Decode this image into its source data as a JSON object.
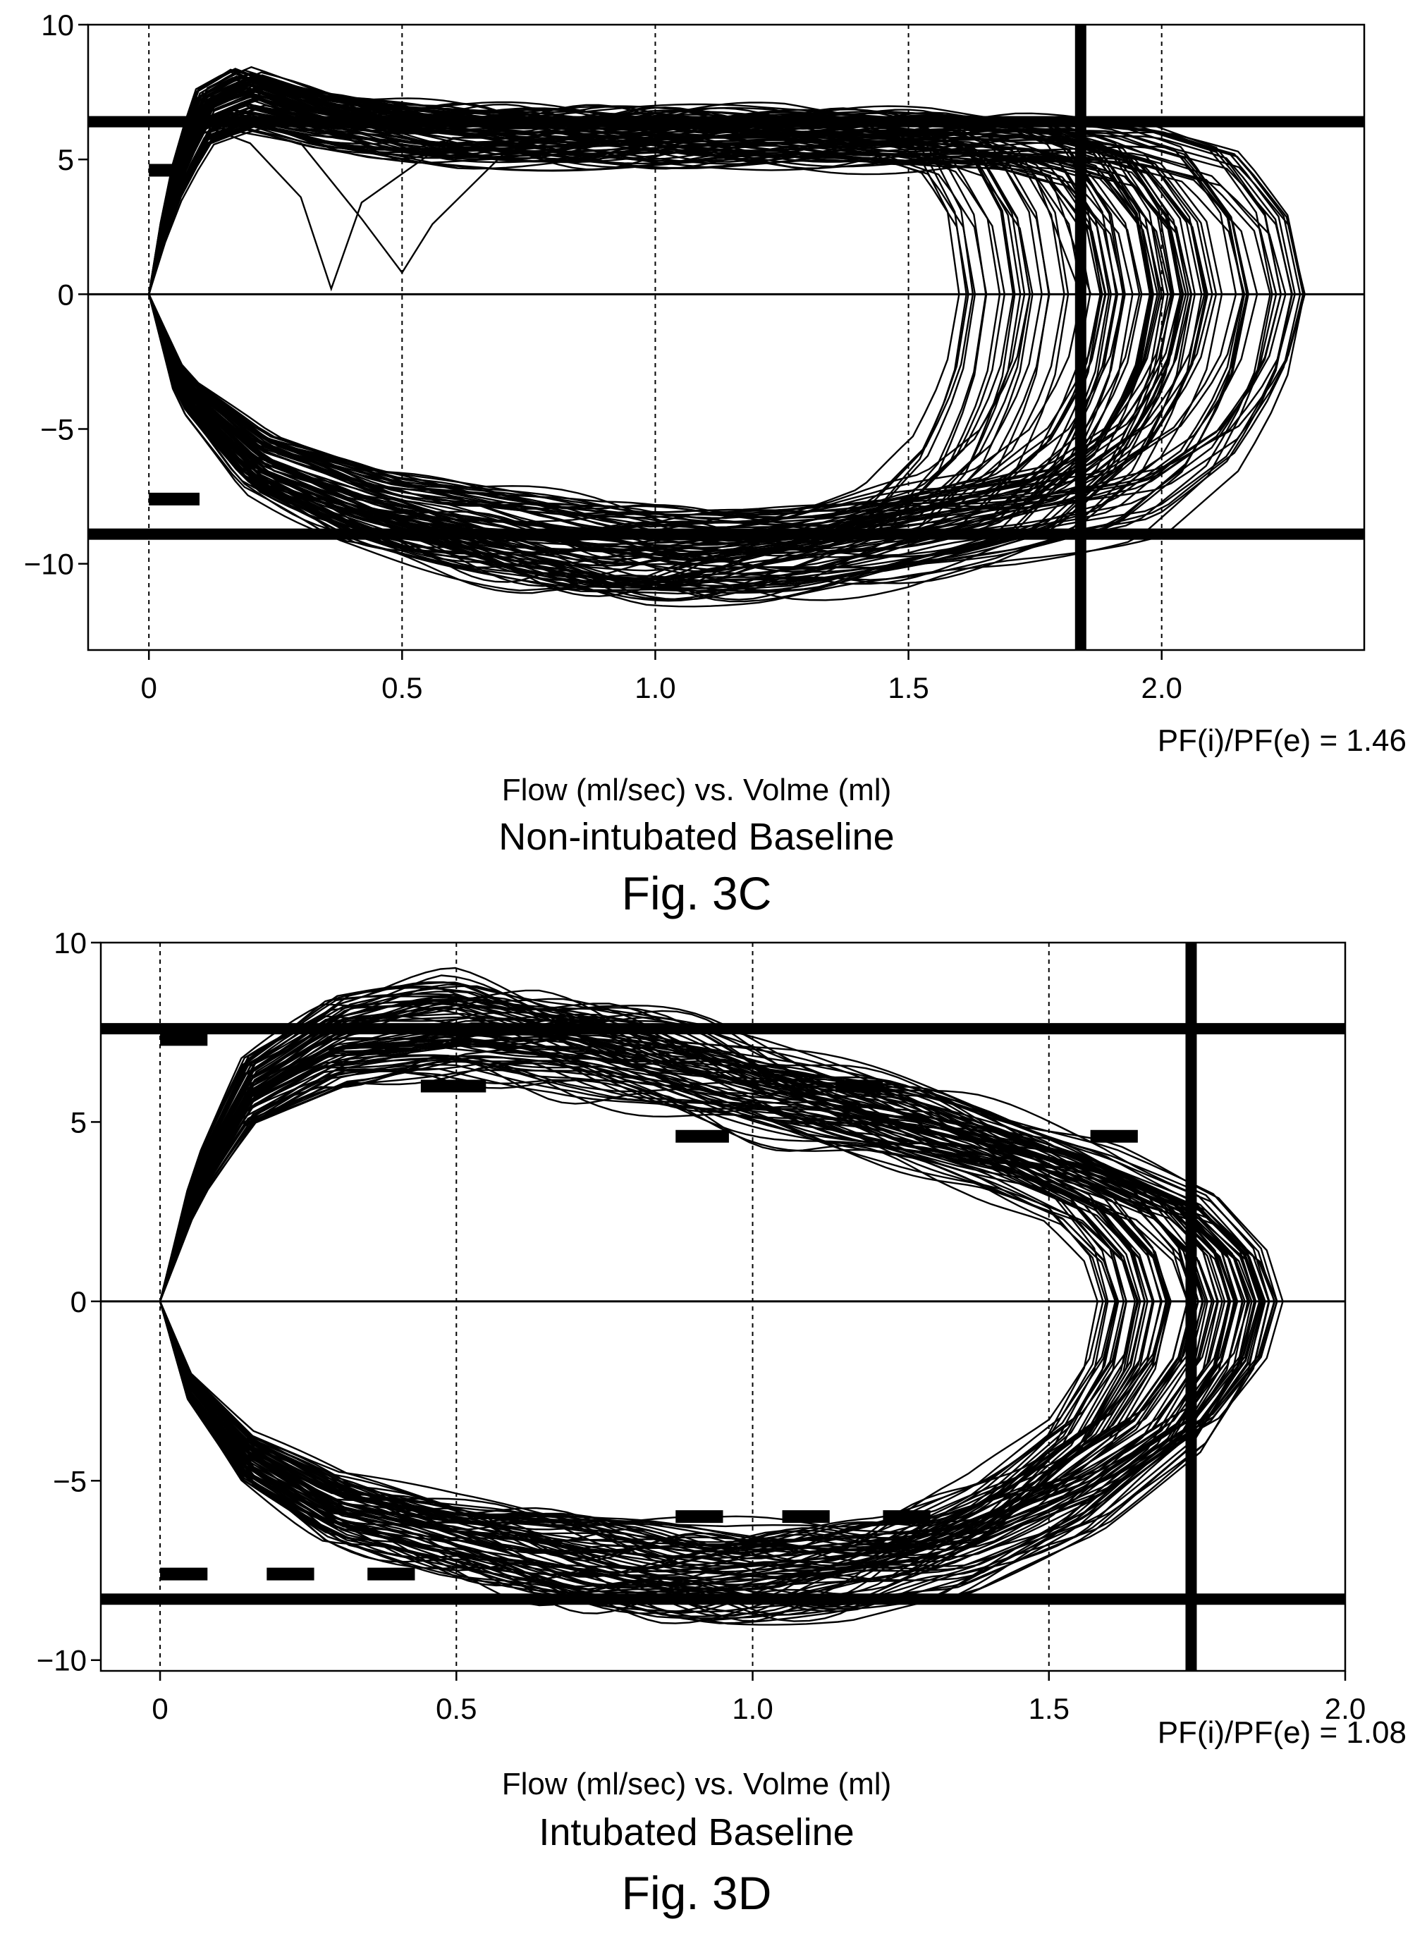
{
  "figures": [
    {
      "xlabel": "Flow (ml/sec) vs. Volme (ml)",
      "subtitle": "Non-intubated Baseline",
      "fig_label": "Fig. 3C",
      "ratio_text": "PF(i)/PF(e) = 1.46"
    },
    {
      "xlabel": "Flow (ml/sec) vs. Volme (ml)",
      "subtitle": "Intubated Baseline",
      "fig_label": "Fig. 3D",
      "ratio_text": "PF(i)/PF(e) = 1.08"
    }
  ],
  "chart_data": [
    {
      "type": "line",
      "title": "",
      "xlabel": "Flow (ml/sec) vs. Volme (ml)",
      "ylabel": "",
      "xlim": [
        -0.12,
        2.4
      ],
      "ylim": [
        -13.2,
        10
      ],
      "x_ticks": [
        0,
        0.5,
        1.0,
        1.5,
        2.0
      ],
      "x_tick_labels": [
        "0",
        "0.5",
        "1.0",
        "1.5",
        "2.0"
      ],
      "y_ticks": [
        10,
        5,
        0,
        -5,
        -10
      ],
      "y_tick_labels": [
        "10",
        "5",
        "0",
        "−5",
        "−10"
      ],
      "vertical_dashed_x": [
        0,
        0.5,
        1.0,
        1.5,
        2.0
      ],
      "zero_line_y": 0,
      "peak_inspiratory_line_y": 6.4,
      "peak_expiratory_line_y": -8.9,
      "max_volume_line_x": 1.84,
      "ratio": 1.46,
      "loops": {
        "count": 90,
        "upper_start": [
          0,
          0
        ],
        "upper": [
          [
            0,
            0
          ],
          [
            0.04,
            3.5
          ],
          [
            0.1,
            6.5
          ],
          [
            0.18,
            7.2
          ],
          [
            0.3,
            6.5
          ],
          [
            0.5,
            5.9
          ],
          [
            0.8,
            5.8
          ],
          [
            1.1,
            5.7
          ],
          [
            1.4,
            5.8
          ],
          [
            1.6,
            5.6
          ],
          [
            1.72,
            4.8
          ],
          [
            1.8,
            2.5
          ],
          [
            1.82,
            0
          ]
        ],
        "lower": [
          [
            0,
            0
          ],
          [
            0.06,
            -3.5
          ],
          [
            0.2,
            -6.2
          ],
          [
            0.4,
            -7.8
          ],
          [
            0.6,
            -8.6
          ],
          [
            0.8,
            -9.4
          ],
          [
            1.0,
            -9.6
          ],
          [
            1.2,
            -9.3
          ],
          [
            1.4,
            -8.6
          ],
          [
            1.6,
            -7.6
          ],
          [
            1.72,
            -5.6
          ],
          [
            1.79,
            -3.0
          ],
          [
            1.82,
            0
          ]
        ],
        "min_volume": 1.6,
        "max_volume": 2.3,
        "outliers": [
          [
            [
              0,
              0
            ],
            [
              0.1,
              6.3
            ],
            [
              0.2,
              5.6
            ],
            [
              0.3,
              3.6
            ],
            [
              0.36,
              0.2
            ],
            [
              0.42,
              3.4
            ],
            [
              0.6,
              5.8
            ],
            [
              1.5,
              5.8
            ],
            [
              1.75,
              4.4
            ],
            [
              1.84,
              0
            ]
          ],
          [
            [
              0,
              0
            ],
            [
              0.1,
              6.3
            ],
            [
              0.3,
              5.6
            ],
            [
              0.42,
              2.8
            ],
            [
              0.5,
              0.8
            ],
            [
              0.56,
              2.6
            ],
            [
              0.7,
              5.2
            ],
            [
              1.5,
              5.8
            ],
            [
              1.78,
              4.4
            ],
            [
              1.86,
              0
            ]
          ]
        ]
      },
      "short_marks": [
        {
          "x": [
            0,
            0.05
          ],
          "y": 4.6
        },
        {
          "x": [
            0,
            0.1
          ],
          "y": -7.6
        }
      ]
    },
    {
      "type": "line",
      "title": "",
      "xlabel": "Flow (ml/sec) vs. Volme (ml)",
      "ylabel": "",
      "xlim": [
        -0.1,
        2.0
      ],
      "ylim": [
        -10.3,
        10
      ],
      "x_ticks": [
        0,
        0.5,
        1.0,
        1.5,
        2.0
      ],
      "x_tick_labels": [
        "0",
        "0.5",
        "1.0",
        "1.5",
        "2.0"
      ],
      "y_ticks": [
        10,
        5,
        0,
        -5,
        -10
      ],
      "y_tick_labels": [
        "10",
        "5",
        "0",
        "−5",
        "−10"
      ],
      "vertical_dashed_x": [
        0,
        0.5,
        1.0,
        1.5
      ],
      "zero_line_y": 0,
      "peak_inspiratory_line_y": 7.6,
      "peak_expiratory_line_y": -8.3,
      "max_volume_line_x": 1.74,
      "ratio": 1.08,
      "loops": {
        "count": 80,
        "upper": [
          [
            0,
            0
          ],
          [
            0.06,
            3.2
          ],
          [
            0.15,
            5.8
          ],
          [
            0.3,
            7.2
          ],
          [
            0.5,
            7.6
          ],
          [
            0.7,
            7.2
          ],
          [
            0.9,
            6.4
          ],
          [
            1.1,
            5.6
          ],
          [
            1.3,
            4.8
          ],
          [
            1.5,
            3.8
          ],
          [
            1.66,
            2.6
          ],
          [
            1.74,
            1.2
          ],
          [
            1.76,
            0
          ]
        ],
        "lower": [
          [
            0,
            0
          ],
          [
            0.05,
            -2.4
          ],
          [
            0.15,
            -4.4
          ],
          [
            0.3,
            -5.8
          ],
          [
            0.5,
            -6.6
          ],
          [
            0.7,
            -7.2
          ],
          [
            0.9,
            -7.6
          ],
          [
            1.1,
            -7.6
          ],
          [
            1.3,
            -7.1
          ],
          [
            1.5,
            -5.6
          ],
          [
            1.66,
            -3.6
          ],
          [
            1.74,
            -1.6
          ],
          [
            1.76,
            0
          ]
        ],
        "min_volume": 1.58,
        "max_volume": 1.9
      },
      "short_marks": [
        {
          "x": [
            0,
            0.08
          ],
          "y": 7.3
        },
        {
          "x": [
            0.44,
            0.55
          ],
          "y": 6.0
        },
        {
          "x": [
            0.87,
            0.96
          ],
          "y": 4.6
        },
        {
          "x": [
            1.14,
            1.22
          ],
          "y": 6.0
        },
        {
          "x": [
            1.57,
            1.65
          ],
          "y": 4.6
        },
        {
          "x": [
            0,
            0.08
          ],
          "y": -7.6
        },
        {
          "x": [
            0.18,
            0.26
          ],
          "y": -7.6
        },
        {
          "x": [
            0.35,
            0.43
          ],
          "y": -7.6
        },
        {
          "x": [
            0.87,
            0.95
          ],
          "y": -6.0
        },
        {
          "x": [
            1.05,
            1.13
          ],
          "y": -6.0
        },
        {
          "x": [
            1.22,
            1.3
          ],
          "y": -6.0
        }
      ]
    }
  ]
}
